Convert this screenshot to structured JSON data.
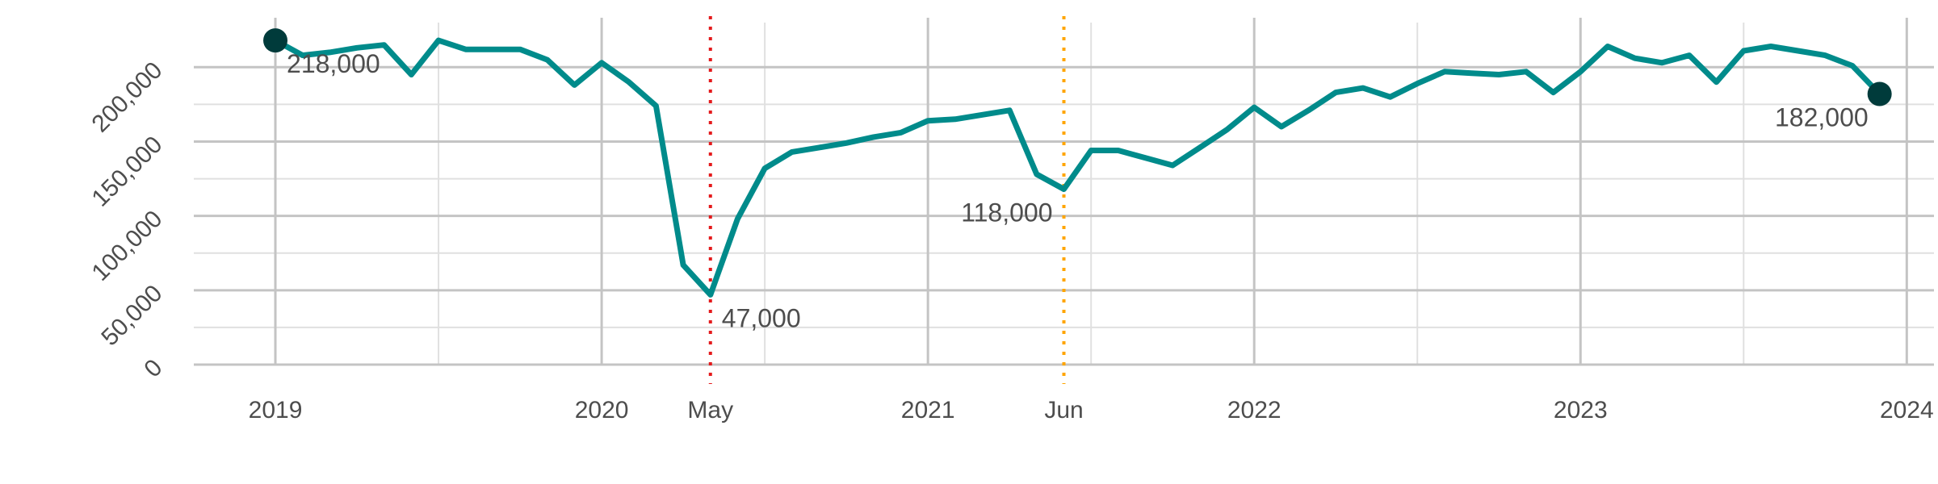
{
  "chart_data": {
    "type": "line",
    "title": "",
    "xlabel": "",
    "ylabel": "",
    "x_range": [
      "2018-10",
      "2024-02"
    ],
    "ylim": [
      0,
      230000
    ],
    "grid": true,
    "y_ticks": [
      {
        "value": 0,
        "label": "0"
      },
      {
        "value": 50000,
        "label": "50,000"
      },
      {
        "value": 100000,
        "label": "100,000"
      },
      {
        "value": 150000,
        "label": "150,000"
      },
      {
        "value": 200000,
        "label": "200,000"
      }
    ],
    "x_ticks": [
      {
        "date": "2019-01",
        "label": "2019"
      },
      {
        "date": "2020-01",
        "label": "2020"
      },
      {
        "date": "2021-01",
        "label": "2021"
      },
      {
        "date": "2022-01",
        "label": "2022"
      },
      {
        "date": "2023-01",
        "label": "2023"
      },
      {
        "date": "2024-01",
        "label": "2024"
      }
    ],
    "x_minor_ticks": [
      "2019-07",
      "2020-07",
      "2021-07",
      "2022-07",
      "2023-07"
    ],
    "series": [
      {
        "color": "#008B8B",
        "points": [
          [
            "2019-01",
            218000
          ],
          [
            "2019-02",
            208000
          ],
          [
            "2019-03",
            210000
          ],
          [
            "2019-04",
            213000
          ],
          [
            "2019-05",
            215000
          ],
          [
            "2019-06",
            195000
          ],
          [
            "2019-07",
            218000
          ],
          [
            "2019-08",
            212000
          ],
          [
            "2019-09",
            212000
          ],
          [
            "2019-10",
            212000
          ],
          [
            "2019-11",
            205000
          ],
          [
            "2019-12",
            188000
          ],
          [
            "2020-01",
            203000
          ],
          [
            "2020-02",
            190000
          ],
          [
            "2020-03",
            174000
          ],
          [
            "2020-04",
            67000
          ],
          [
            "2020-05",
            47000
          ],
          [
            "2020-06",
            98000
          ],
          [
            "2020-07",
            132000
          ],
          [
            "2020-08",
            143000
          ],
          [
            "2020-09",
            146000
          ],
          [
            "2020-10",
            149000
          ],
          [
            "2020-11",
            153000
          ],
          [
            "2020-12",
            156000
          ],
          [
            "2021-01",
            164000
          ],
          [
            "2021-02",
            165000
          ],
          [
            "2021-03",
            168000
          ],
          [
            "2021-04",
            171000
          ],
          [
            "2021-05",
            128000
          ],
          [
            "2021-06",
            118000
          ],
          [
            "2021-07",
            144000
          ],
          [
            "2021-08",
            144000
          ],
          [
            "2021-09",
            139000
          ],
          [
            "2021-10",
            134000
          ],
          [
            "2021-11",
            146000
          ],
          [
            "2021-12",
            158000
          ],
          [
            "2022-01",
            173000
          ],
          [
            "2022-02",
            160000
          ],
          [
            "2022-03",
            171000
          ],
          [
            "2022-04",
            183000
          ],
          [
            "2022-05",
            186000
          ],
          [
            "2022-06",
            180000
          ],
          [
            "2022-07",
            189000
          ],
          [
            "2022-08",
            197000
          ],
          [
            "2022-09",
            196000
          ],
          [
            "2022-10",
            195000
          ],
          [
            "2022-11",
            197000
          ],
          [
            "2022-12",
            183000
          ],
          [
            "2023-01",
            197000
          ],
          [
            "2023-02",
            214000
          ],
          [
            "2023-03",
            206000
          ],
          [
            "2023-04",
            203000
          ],
          [
            "2023-05",
            208000
          ],
          [
            "2023-06",
            190000
          ],
          [
            "2023-07",
            211000
          ],
          [
            "2023-08",
            214000
          ],
          [
            "2023-09",
            211000
          ],
          [
            "2023-10",
            208000
          ],
          [
            "2023-11",
            201000
          ],
          [
            "2023-12",
            182000
          ]
        ]
      }
    ],
    "endpoints": {
      "color": "#003B3B",
      "points": [
        [
          "2019-01",
          218000
        ],
        [
          "2023-12",
          182000
        ]
      ]
    },
    "annotations": [
      {
        "date": "2019-01",
        "value": 218000,
        "label": "218,000",
        "anchor": "start"
      },
      {
        "date": "2020-05",
        "value": 47000,
        "label": "47,000",
        "anchor": "start"
      },
      {
        "date": "2021-06",
        "value": 118000,
        "label": "118,000",
        "anchor": "end"
      },
      {
        "date": "2023-12",
        "value": 182000,
        "label": "182,000",
        "anchor": "end"
      }
    ],
    "vlines": [
      {
        "date": "2020-05",
        "color": "#E41A1C",
        "label": "May"
      },
      {
        "date": "2021-06",
        "color": "#FFA500",
        "label": "Jun"
      }
    ]
  }
}
